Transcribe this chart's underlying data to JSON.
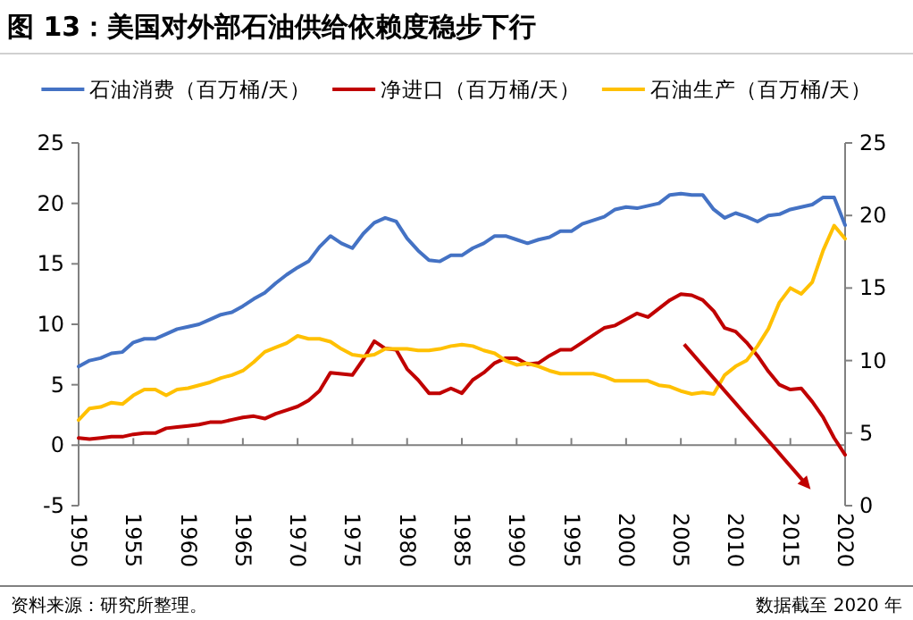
{
  "chart_data": {
    "type": "line",
    "title": "图 13：美国对外部石油供给依赖度稳步下行",
    "x": [
      1950,
      1951,
      1952,
      1953,
      1954,
      1955,
      1956,
      1957,
      1958,
      1959,
      1960,
      1961,
      1962,
      1963,
      1964,
      1965,
      1966,
      1967,
      1968,
      1969,
      1970,
      1971,
      1972,
      1973,
      1974,
      1975,
      1976,
      1977,
      1978,
      1979,
      1980,
      1981,
      1982,
      1983,
      1984,
      1985,
      1986,
      1987,
      1988,
      1989,
      1990,
      1991,
      1992,
      1993,
      1994,
      1995,
      1996,
      1997,
      1998,
      1999,
      2000,
      2001,
      2002,
      2003,
      2004,
      2005,
      2006,
      2007,
      2008,
      2009,
      2010,
      2011,
      2012,
      2013,
      2014,
      2015,
      2016,
      2017,
      2018,
      2019,
      2020
    ],
    "series": [
      {
        "name": "石油消费（百万桶/天）",
        "color": "#4472c4",
        "values": [
          6.5,
          7.0,
          7.2,
          7.6,
          7.7,
          8.5,
          8.8,
          8.8,
          9.2,
          9.6,
          9.8,
          10.0,
          10.4,
          10.8,
          11.0,
          11.5,
          12.1,
          12.6,
          13.4,
          14.1,
          14.7,
          15.2,
          16.4,
          17.3,
          16.7,
          16.3,
          17.5,
          18.4,
          18.8,
          18.5,
          17.1,
          16.1,
          15.3,
          15.2,
          15.7,
          15.7,
          16.3,
          16.7,
          17.3,
          17.3,
          17.0,
          16.7,
          17.0,
          17.2,
          17.7,
          17.7,
          18.3,
          18.6,
          18.9,
          19.5,
          19.7,
          19.6,
          19.8,
          20.0,
          20.7,
          20.8,
          20.7,
          20.7,
          19.5,
          18.8,
          19.2,
          18.9,
          18.5,
          19.0,
          19.1,
          19.5,
          19.7,
          19.9,
          20.5,
          20.5,
          18.2
        ]
      },
      {
        "name": "净进口（百万桶/天）",
        "color": "#c00000",
        "values": [
          0.6,
          0.5,
          0.6,
          0.7,
          0.7,
          0.9,
          1.0,
          1.0,
          1.4,
          1.5,
          1.6,
          1.7,
          1.9,
          1.9,
          2.1,
          2.3,
          2.4,
          2.2,
          2.6,
          2.9,
          3.2,
          3.7,
          4.5,
          6.0,
          5.9,
          5.8,
          7.1,
          8.6,
          8.0,
          7.9,
          6.3,
          5.4,
          4.3,
          4.3,
          4.7,
          4.3,
          5.4,
          6.0,
          6.8,
          7.2,
          7.2,
          6.7,
          6.8,
          7.4,
          7.9,
          7.9,
          8.5,
          9.1,
          9.7,
          9.9,
          10.4,
          10.9,
          10.6,
          11.3,
          12.0,
          12.5,
          12.4,
          12.0,
          11.1,
          9.7,
          9.4,
          8.5,
          7.4,
          6.1,
          5.0,
          4.6,
          4.7,
          3.6,
          2.3,
          0.6,
          -0.8
        ]
      },
      {
        "name": "石油生产（百万桶/天）",
        "color": "#ffc000",
        "axis": "y2",
        "values": [
          5.9,
          6.7,
          6.8,
          7.1,
          7.0,
          7.6,
          8.0,
          8.0,
          7.6,
          8.0,
          8.1,
          8.3,
          8.5,
          8.8,
          9.0,
          9.3,
          9.9,
          10.6,
          10.9,
          11.2,
          11.7,
          11.5,
          11.5,
          11.3,
          10.8,
          10.4,
          10.3,
          10.4,
          10.8,
          10.8,
          10.8,
          10.7,
          10.7,
          10.8,
          11.0,
          11.1,
          11.0,
          10.7,
          10.5,
          10.0,
          9.7,
          9.8,
          9.6,
          9.3,
          9.1,
          9.1,
          9.1,
          9.1,
          8.9,
          8.6,
          8.6,
          8.6,
          8.6,
          8.3,
          8.2,
          7.9,
          7.7,
          7.8,
          7.7,
          9.0,
          9.6,
          10.0,
          11.0,
          12.2,
          14.0,
          15.0,
          14.6,
          15.4,
          17.6,
          19.3,
          18.4
        ]
      }
    ],
    "xlim": [
      1950,
      2020
    ],
    "xticks": [
      1950,
      1955,
      1960,
      1965,
      1970,
      1975,
      1980,
      1985,
      1990,
      1995,
      2000,
      2005,
      2010,
      2015,
      2020
    ],
    "ylim": [
      -5,
      25
    ],
    "yticks": [
      -5,
      0,
      5,
      10,
      15,
      20,
      25
    ],
    "y2lim": [
      0,
      25
    ],
    "y2ticks": [
      0,
      5,
      10,
      15,
      20,
      25
    ],
    "legend": "top",
    "annotations": [
      "资料来源：研究所整理。",
      "数据截至 2020 年"
    ]
  }
}
